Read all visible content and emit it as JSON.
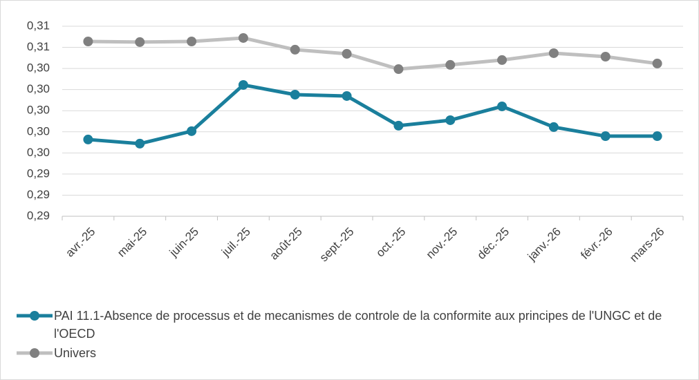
{
  "chart_data": {
    "type": "line",
    "categories": [
      "avr.-25",
      "mai-25",
      "juin-25",
      "juil.-25",
      "août-25",
      "sept.-25",
      "oct.-25",
      "nov.-25",
      "déc.-25",
      "janv.-26",
      "févr.-26",
      "mars-26"
    ],
    "series": [
      {
        "name": "PAI 11.1-Absence de processus et de mecanismes de controle de la conformite aux principes de l'UNGC et de l'OECD",
        "color": "#1a7f9c",
        "values": [
          0.29727,
          0.29688,
          0.29806,
          0.30244,
          0.30152,
          0.30139,
          0.29858,
          0.2991,
          0.30041,
          0.29845,
          0.29759,
          0.29759
        ]
      },
      {
        "name": "Univers",
        "color": "#bfbfbf",
        "values": [
          0.30656,
          0.3065,
          0.30656,
          0.30689,
          0.30578,
          0.30539,
          0.30394,
          0.30434,
          0.3048,
          0.30545,
          0.30512,
          0.30447
        ]
      }
    ],
    "ylim": [
      0.29,
      0.308
    ],
    "yticks": [
      {
        "value": 0.29,
        "label": "0,29"
      },
      {
        "value": 0.292,
        "label": "0,29"
      },
      {
        "value": 0.294,
        "label": "0,29"
      },
      {
        "value": 0.296,
        "label": "0,30"
      },
      {
        "value": 0.298,
        "label": "0,30"
      },
      {
        "value": 0.3,
        "label": "0,30"
      },
      {
        "value": 0.302,
        "label": "0,30"
      },
      {
        "value": 0.304,
        "label": "0,30"
      },
      {
        "value": 0.306,
        "label": "0,31"
      },
      {
        "value": 0.308,
        "label": "0,31"
      }
    ],
    "grid": true,
    "legend": "bottom"
  }
}
